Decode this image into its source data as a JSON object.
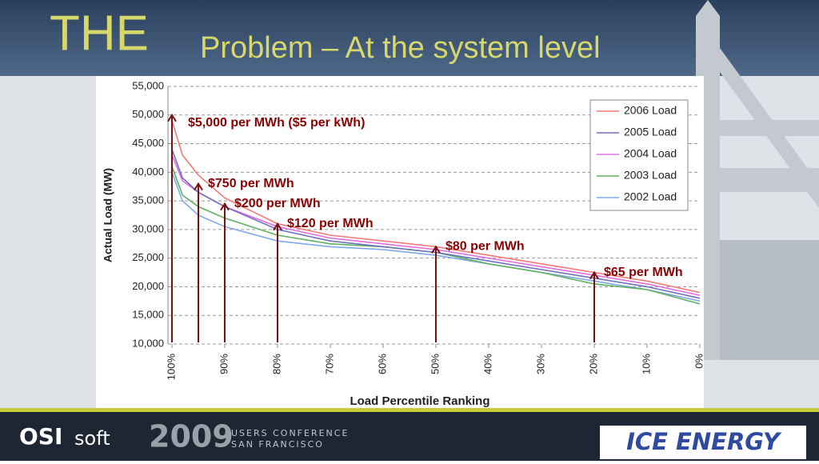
{
  "slide": {
    "title_lead": "THE",
    "title_rest": "Problem – At the system level",
    "footer": {
      "logo_bold": "OSI",
      "logo_light": "soft",
      "year": "2009",
      "conf_line1": "USERS CONFERENCE",
      "conf_line2": "SAN FRANCISCO",
      "partner": "ICE ENERGY"
    }
  },
  "chart_data": {
    "type": "line",
    "x_label": "Load Percentile Ranking",
    "y_label": "Actual Load (MW)",
    "x": [
      100,
      98,
      95,
      90,
      80,
      70,
      60,
      50,
      40,
      30,
      20,
      10,
      0
    ],
    "xlim": [
      100,
      0
    ],
    "xticks": [
      {
        "value": 100,
        "label": "100%"
      },
      {
        "value": 90,
        "label": "90%"
      },
      {
        "value": 80,
        "label": "80%"
      },
      {
        "value": 70,
        "label": "70%"
      },
      {
        "value": 60,
        "label": "60%"
      },
      {
        "value": 50,
        "label": "50%"
      },
      {
        "value": 40,
        "label": "40%"
      },
      {
        "value": 30,
        "label": "30%"
      },
      {
        "value": 20,
        "label": "20%"
      },
      {
        "value": 10,
        "label": "10%"
      },
      {
        "value": 0,
        "label": "0%"
      }
    ],
    "ylim": [
      10000,
      55000
    ],
    "yticks": [
      {
        "value": 10000,
        "label": "10,000"
      },
      {
        "value": 15000,
        "label": "15,000"
      },
      {
        "value": 20000,
        "label": "20,000"
      },
      {
        "value": 25000,
        "label": "25,000"
      },
      {
        "value": 30000,
        "label": "30,000"
      },
      {
        "value": 35000,
        "label": "35,000"
      },
      {
        "value": 40000,
        "label": "40,000"
      },
      {
        "value": 45000,
        "label": "45,000"
      },
      {
        "value": 50000,
        "label": "50,000"
      },
      {
        "value": 55000,
        "label": "55,000"
      }
    ],
    "grid": true,
    "legend": "upper right",
    "series": [
      {
        "name": "2006 Load",
        "color": "#f07a7a",
        "values": [
          49000,
          43000,
          39500,
          35500,
          31000,
          29000,
          28000,
          27000,
          25500,
          24000,
          22500,
          21000,
          19000
        ]
      },
      {
        "name": "2005 Load",
        "color": "#7070c0",
        "values": [
          44000,
          39000,
          36500,
          34000,
          30000,
          28000,
          27000,
          26000,
          24500,
          23000,
          21500,
          20000,
          18000
        ]
      },
      {
        "name": "2004 Load",
        "color": "#e070e0",
        "values": [
          43000,
          38500,
          36500,
          34000,
          30500,
          28500,
          27500,
          26500,
          25000,
          23500,
          22000,
          20500,
          18500
        ]
      },
      {
        "name": "2003 Load",
        "color": "#60b060",
        "values": [
          41000,
          36000,
          34000,
          32000,
          29000,
          27500,
          27000,
          26000,
          24000,
          22500,
          20500,
          19500,
          17000
        ]
      },
      {
        "name": "2002 Load",
        "color": "#80a8e8",
        "values": [
          40000,
          35000,
          32500,
          30500,
          28000,
          27000,
          26500,
          25500,
          24000,
          22500,
          21000,
          19500,
          17500
        ]
      }
    ],
    "annotations": [
      {
        "text": "$5,000 per MWh ($5 per kWh)",
        "x": 100,
        "y": 50000
      },
      {
        "text": "$750 per MWh",
        "x": 95,
        "y": 38000
      },
      {
        "text": "$200 per MWh",
        "x": 90,
        "y": 34500
      },
      {
        "text": "$120 per MWh",
        "x": 80,
        "y": 31000
      },
      {
        "text": "$80 per MWh",
        "x": 50,
        "y": 27000
      },
      {
        "text": "$65 per MWh",
        "x": 20,
        "y": 22500
      }
    ]
  }
}
